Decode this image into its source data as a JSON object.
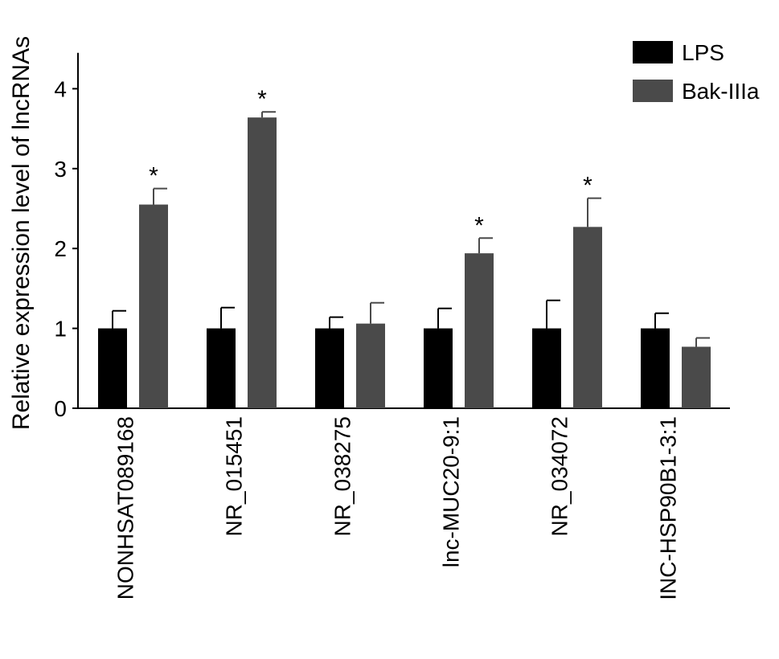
{
  "chart_data": {
    "type": "bar",
    "ylabel": "Relative expression level of lncRNAs",
    "ylim": [
      0,
      4.5
    ],
    "y_ticks": [
      0,
      1,
      2,
      3,
      4
    ],
    "categories": [
      "NONHSAT089168",
      "NR_015451",
      "NR_038275",
      "lnc-MUC20-9:1",
      "NR_034072",
      "INC-HSP90B1-3:1"
    ],
    "series": [
      {
        "name": "LPS",
        "color": "#000000",
        "values": [
          1.0,
          1.0,
          1.0,
          1.0,
          1.0,
          1.0
        ],
        "errors": [
          0.22,
          0.26,
          0.14,
          0.25,
          0.35,
          0.19
        ]
      },
      {
        "name": "Bak-IIIa",
        "color": "#4a4a4a",
        "values": [
          2.55,
          3.64,
          1.06,
          1.94,
          2.27,
          0.77
        ],
        "errors": [
          0.2,
          0.07,
          0.26,
          0.19,
          0.36,
          0.11
        ],
        "significance": [
          "*",
          "*",
          "",
          "*",
          "*",
          ""
        ]
      }
    ],
    "legend_position": "top-right",
    "grid": false
  }
}
